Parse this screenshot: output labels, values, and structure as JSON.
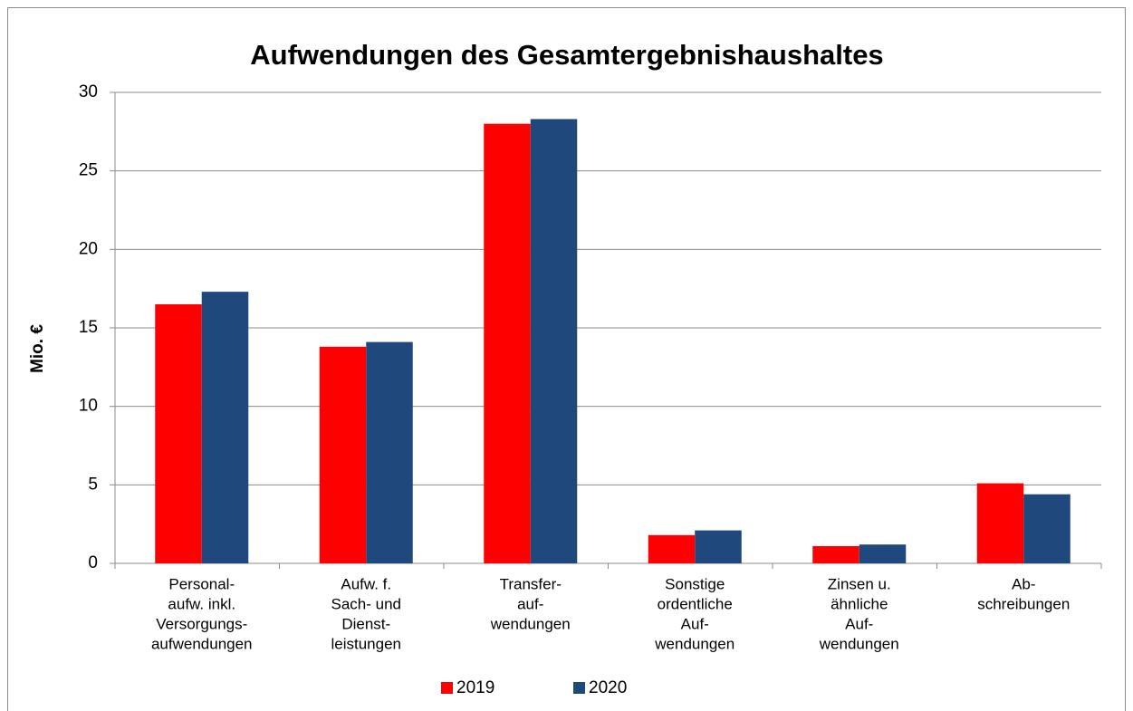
{
  "chart_data": {
    "type": "bar",
    "title": "Aufwendungen des Gesamtergebnishaushaltes",
    "y_label": "Mio. €",
    "categories": [
      [
        "Personal-",
        "aufw. inkl.",
        "Versorgungs-",
        "aufwendungen"
      ],
      [
        "Aufw. f.",
        "Sach- und",
        "Dienst-",
        "leistungen"
      ],
      [
        "Transfer-",
        "auf-",
        "wendungen"
      ],
      [
        "Sonstige",
        "ordentliche",
        "Auf-",
        "wendungen"
      ],
      [
        "Zinsen u.",
        "ähnliche",
        "Auf-",
        "wendungen"
      ],
      [
        "Ab-",
        "schreibungen"
      ]
    ],
    "series": [
      {
        "name": "2019",
        "color": "#ff0000",
        "values": [
          16.5,
          13.8,
          28.0,
          1.8,
          1.1,
          5.1
        ]
      },
      {
        "name": "2020",
        "color": "#1f497d",
        "values": [
          17.3,
          14.1,
          28.3,
          2.1,
          1.2,
          4.4
        ]
      }
    ],
    "ylim": [
      0,
      30
    ],
    "yticks": [
      0,
      5,
      10,
      15,
      20,
      25,
      30
    ],
    "grid": true,
    "legend": "bottom"
  }
}
